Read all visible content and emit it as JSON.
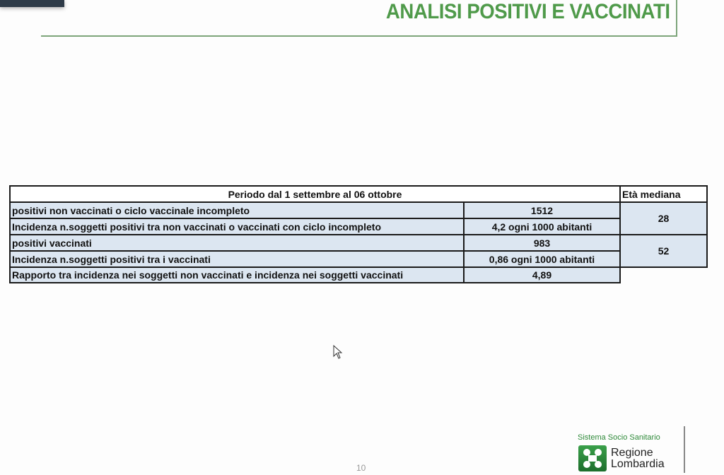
{
  "header": {
    "title": "ANALISI POSITIVI E VACCINATI"
  },
  "table": {
    "period_header": "Periodo dal 1 settembre al 06 ottobre",
    "age_header": "Età mediana",
    "rows": [
      {
        "label": "positivi non vaccinati o ciclo vaccinale incompleto",
        "value": "1512"
      },
      {
        "label": "Incidenza n.soggetti positivi tra non vaccinati o vaccinati con ciclo incompleto",
        "value": "4,2 ogni 1000 abitanti"
      },
      {
        "label": "positivi vaccinati",
        "value": "983"
      },
      {
        "label": "Incidenza n.soggetti positivi tra i vaccinati",
        "value": "0,86 ogni 1000 abitanti"
      },
      {
        "label": "Rapporto tra incidenza nei soggetti non vaccinati e incidenza nei soggetti vaccinati",
        "value": "4,89"
      }
    ],
    "ages": [
      "28",
      "52"
    ]
  },
  "footer": {
    "page_number": "10",
    "logo_tagline": "Sistema Socio Sanitario",
    "logo_name_1": "Regione",
    "logo_name_2": "Lombardia"
  },
  "colors": {
    "title": "#4f9a4a",
    "cell_bg": "#dce6f1"
  }
}
